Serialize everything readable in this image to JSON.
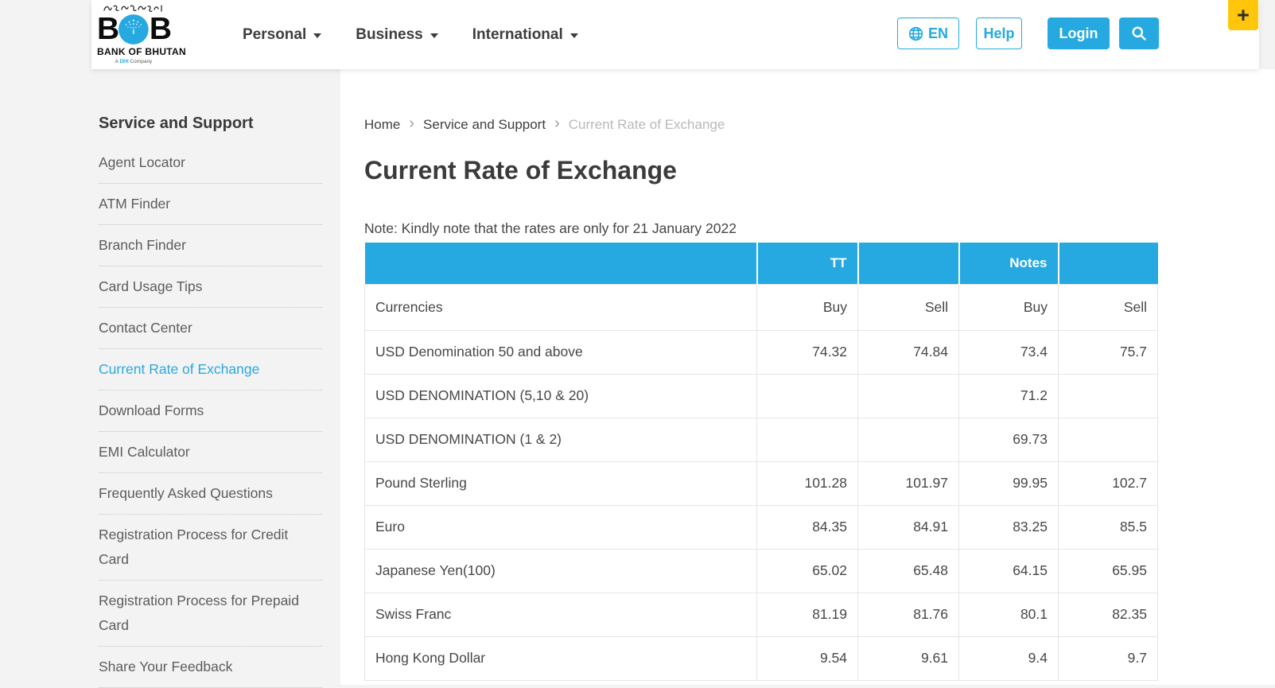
{
  "colors": {
    "accent_blue": "#25a9e0",
    "accessibility_yellow": "#ffc60b"
  },
  "icons": {
    "language": "globe-icon",
    "search": "search-icon",
    "accessibility": "plus-icon",
    "nav_caret": "chevron-down-icon",
    "breadcrumb_separator": "chevron-right-icon"
  },
  "header": {
    "logo": {
      "dzongkha": "འབྲུག་གི་དངུལ་ཁང་།",
      "letter_left": "B",
      "letter_right": "B",
      "bank_name": "BANK OF BHUTAN",
      "tagline_prefix": "A",
      "tagline_brand": "DHI",
      "tagline_suffix": "Company"
    },
    "nav": [
      {
        "label": "Personal"
      },
      {
        "label": "Business"
      },
      {
        "label": "International"
      }
    ],
    "language_label": "EN",
    "help_label": "Help",
    "login_label": "Login",
    "accessibility_label": "+"
  },
  "sidebar": {
    "title": "Service and Support",
    "items": [
      {
        "label": "Agent Locator",
        "active": false
      },
      {
        "label": "ATM Finder",
        "active": false
      },
      {
        "label": "Branch Finder",
        "active": false
      },
      {
        "label": "Card Usage Tips",
        "active": false
      },
      {
        "label": "Contact Center",
        "active": false
      },
      {
        "label": "Current Rate of Exchange",
        "active": true
      },
      {
        "label": "Download Forms",
        "active": false
      },
      {
        "label": "EMI Calculator",
        "active": false
      },
      {
        "label": "Frequently Asked Questions",
        "active": false
      },
      {
        "label": "Registration Process for Credit Card",
        "active": false
      },
      {
        "label": "Registration Process for Prepaid Card",
        "active": false
      },
      {
        "label": "Share Your Feedback",
        "active": false
      }
    ]
  },
  "breadcrumb": [
    {
      "label": "Home",
      "current": false
    },
    {
      "label": "Service and Support",
      "current": false
    },
    {
      "label": "Current Rate of Exchange",
      "current": true
    }
  ],
  "main": {
    "title": "Current Rate of Exchange",
    "note": "Note: Kindly note that the rates are only for 21 January 2022"
  },
  "rates_table": {
    "group_headers": [
      "",
      "TT",
      "",
      "Notes",
      ""
    ],
    "sub_headers": [
      "Currencies",
      "Buy",
      "Sell",
      "Buy",
      "Sell"
    ],
    "rows": [
      {
        "currency": "USD Denomination 50 and above",
        "tt_buy": "74.32",
        "tt_sell": "74.84",
        "notes_buy": "73.4",
        "notes_sell": "75.7"
      },
      {
        "currency": "USD DENOMINATION (5,10 & 20)",
        "tt_buy": "",
        "tt_sell": "",
        "notes_buy": "71.2",
        "notes_sell": ""
      },
      {
        "currency": "USD DENOMINATION (1 & 2)",
        "tt_buy": "",
        "tt_sell": "",
        "notes_buy": "69.73",
        "notes_sell": ""
      },
      {
        "currency": "Pound Sterling",
        "tt_buy": "101.28",
        "tt_sell": "101.97",
        "notes_buy": "99.95",
        "notes_sell": "102.7"
      },
      {
        "currency": "Euro",
        "tt_buy": "84.35",
        "tt_sell": "84.91",
        "notes_buy": "83.25",
        "notes_sell": "85.5"
      },
      {
        "currency": "Japanese Yen(100)",
        "tt_buy": "65.02",
        "tt_sell": "65.48",
        "notes_buy": "64.15",
        "notes_sell": "65.95"
      },
      {
        "currency": "Swiss Franc",
        "tt_buy": "81.19",
        "tt_sell": "81.76",
        "notes_buy": "80.1",
        "notes_sell": "82.35"
      },
      {
        "currency": "Hong Kong Dollar",
        "tt_buy": "9.54",
        "tt_sell": "9.61",
        "notes_buy": "9.4",
        "notes_sell": "9.7"
      }
    ]
  }
}
